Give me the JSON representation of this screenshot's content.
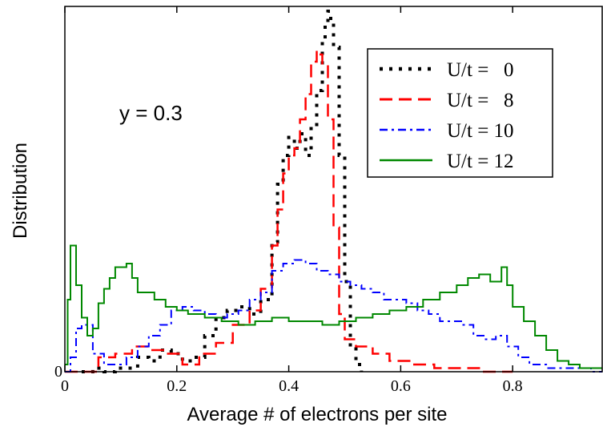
{
  "chart_data": {
    "type": "line",
    "xlabel": "Average # of electrons per site",
    "ylabel": "Distribution",
    "annotation": "y = 0.3",
    "xlim": [
      0,
      0.96
    ],
    "ylim": [
      0,
      1
    ],
    "x_ticks": [
      {
        "value": 0,
        "label": "0"
      },
      {
        "value": 0.2,
        "label": "0.2"
      },
      {
        "value": 0.4,
        "label": "0.4"
      },
      {
        "value": 0.6,
        "label": "0.6"
      },
      {
        "value": 0.8,
        "label": "0.8"
      }
    ],
    "y_ticks": [
      {
        "value": 0,
        "label": "0"
      }
    ],
    "legend_position": "top-right",
    "series": [
      {
        "name": "U/t =   0",
        "color": "#000000",
        "dash": "dotted",
        "x": [
          0.03,
          0.05,
          0.07,
          0.09,
          0.11,
          0.13,
          0.15,
          0.17,
          0.19,
          0.21,
          0.23,
          0.25,
          0.27,
          0.29,
          0.31,
          0.33,
          0.35,
          0.37,
          0.38,
          0.39,
          0.4,
          0.41,
          0.42,
          0.43,
          0.44,
          0.45,
          0.46,
          0.465,
          0.47,
          0.475,
          0.48,
          0.49,
          0.5,
          0.51,
          0.52,
          0.53
        ],
        "y": [
          0.0,
          0.01,
          0.0,
          0.01,
          0.01,
          0.04,
          0.03,
          0.06,
          0.05,
          0.03,
          0.04,
          0.1,
          0.15,
          0.17,
          0.18,
          0.16,
          0.2,
          0.36,
          0.52,
          0.6,
          0.65,
          0.62,
          0.66,
          0.6,
          0.68,
          0.78,
          0.92,
          0.96,
          1.0,
          0.97,
          0.9,
          0.6,
          0.25,
          0.07,
          0.02,
          0.0
        ]
      },
      {
        "name": "U/t =   8",
        "color": "#ff0000",
        "dash": "dashed",
        "x": [
          0.0,
          0.03,
          0.06,
          0.09,
          0.12,
          0.15,
          0.18,
          0.21,
          0.24,
          0.27,
          0.3,
          0.33,
          0.35,
          0.37,
          0.38,
          0.39,
          0.4,
          0.41,
          0.42,
          0.43,
          0.44,
          0.45,
          0.455,
          0.46,
          0.47,
          0.48,
          0.49,
          0.5,
          0.52,
          0.55,
          0.58,
          0.62,
          0.66,
          0.7,
          0.74,
          0.78,
          0.8
        ],
        "y": [
          0.0,
          0.0,
          0.04,
          0.05,
          0.07,
          0.06,
          0.05,
          0.02,
          0.05,
          0.08,
          0.13,
          0.17,
          0.23,
          0.35,
          0.45,
          0.55,
          0.6,
          0.62,
          0.7,
          0.77,
          0.86,
          0.89,
          0.88,
          0.85,
          0.7,
          0.4,
          0.16,
          0.09,
          0.07,
          0.05,
          0.03,
          0.02,
          0.01,
          0.01,
          0.0,
          0.0,
          0.0
        ]
      },
      {
        "name": "U/t = 10",
        "color": "#0000ff",
        "dash": "dashdot",
        "x": [
          0.0,
          0.01,
          0.02,
          0.03,
          0.05,
          0.07,
          0.09,
          0.11,
          0.13,
          0.15,
          0.17,
          0.19,
          0.21,
          0.23,
          0.25,
          0.27,
          0.29,
          0.31,
          0.33,
          0.35,
          0.37,
          0.39,
          0.41,
          0.43,
          0.45,
          0.47,
          0.49,
          0.51,
          0.53,
          0.55,
          0.57,
          0.59,
          0.61,
          0.63,
          0.65,
          0.67,
          0.69,
          0.71,
          0.73,
          0.75,
          0.77,
          0.79,
          0.81,
          0.83,
          0.86,
          0.9,
          0.94,
          0.96
        ],
        "y": [
          0.0,
          0.04,
          0.12,
          0.13,
          0.05,
          0.02,
          0.02,
          0.04,
          0.07,
          0.1,
          0.13,
          0.17,
          0.18,
          0.17,
          0.16,
          0.15,
          0.16,
          0.17,
          0.2,
          0.22,
          0.28,
          0.3,
          0.31,
          0.3,
          0.28,
          0.27,
          0.25,
          0.24,
          0.23,
          0.22,
          0.2,
          0.2,
          0.19,
          0.17,
          0.16,
          0.14,
          0.14,
          0.13,
          0.1,
          0.09,
          0.1,
          0.07,
          0.04,
          0.02,
          0.01,
          0.01,
          0.0,
          0.0
        ]
      },
      {
        "name": "U/t = 12",
        "color": "#008800",
        "dash": "solid",
        "x": [
          0.0,
          0.005,
          0.01,
          0.02,
          0.03,
          0.04,
          0.05,
          0.06,
          0.07,
          0.08,
          0.09,
          0.1,
          0.11,
          0.12,
          0.13,
          0.14,
          0.16,
          0.18,
          0.2,
          0.22,
          0.25,
          0.28,
          0.31,
          0.34,
          0.37,
          0.4,
          0.43,
          0.46,
          0.49,
          0.52,
          0.55,
          0.58,
          0.61,
          0.64,
          0.67,
          0.7,
          0.72,
          0.74,
          0.76,
          0.78,
          0.79,
          0.8,
          0.82,
          0.84,
          0.86,
          0.88,
          0.9,
          0.92,
          0.94,
          0.96
        ],
        "y": [
          0.02,
          0.2,
          0.35,
          0.24,
          0.15,
          0.1,
          0.12,
          0.19,
          0.23,
          0.26,
          0.29,
          0.29,
          0.3,
          0.26,
          0.22,
          0.22,
          0.2,
          0.18,
          0.17,
          0.16,
          0.15,
          0.14,
          0.13,
          0.14,
          0.15,
          0.14,
          0.14,
          0.13,
          0.14,
          0.15,
          0.16,
          0.17,
          0.18,
          0.2,
          0.22,
          0.24,
          0.26,
          0.27,
          0.25,
          0.29,
          0.24,
          0.18,
          0.14,
          0.1,
          0.06,
          0.03,
          0.02,
          0.01,
          0.01,
          0.01
        ]
      }
    ]
  }
}
